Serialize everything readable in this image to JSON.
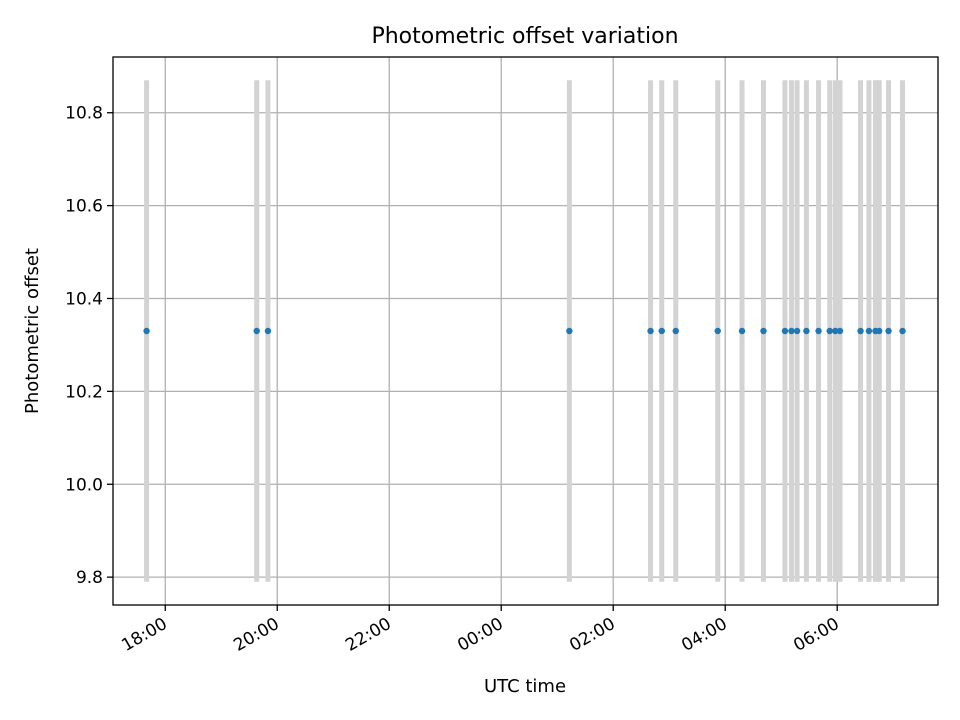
{
  "chart_data": {
    "type": "scatter",
    "title": "Photometric offset variation",
    "xlabel": "UTC time",
    "ylabel": "Photometric offset",
    "x_unit": "hours",
    "xlim": [
      "17:02",
      "07:46"
    ],
    "ylim": [
      9.74,
      10.92
    ],
    "x_ticks": [
      {
        "value": "17:58",
        "label": "18:00"
      },
      {
        "value": "19:58",
        "label": "20:00"
      },
      {
        "value": "21:58",
        "label": "22:00"
      },
      {
        "value": "23:58",
        "label": "00:00"
      },
      {
        "value": "01:58",
        "label": "02:00"
      },
      {
        "value": "03:58",
        "label": "04:00"
      },
      {
        "value": "05:58",
        "label": "06:00"
      }
    ],
    "y_ticks": [
      {
        "value": 9.8,
        "label": "9.8"
      },
      {
        "value": 10.0,
        "label": "10.0"
      },
      {
        "value": 10.2,
        "label": "10.2"
      },
      {
        "value": 10.4,
        "label": "10.4"
      },
      {
        "value": 10.6,
        "label": "10.6"
      },
      {
        "value": 10.8,
        "label": "10.8"
      }
    ],
    "grid": true,
    "error_bar_range": [
      9.79,
      10.87
    ],
    "points": [
      {
        "x": "17:38",
        "y": 10.33
      },
      {
        "x": "19:36",
        "y": 10.33
      },
      {
        "x": "19:48",
        "y": 10.33
      },
      {
        "x": "01:11",
        "y": 10.33
      },
      {
        "x": "02:38",
        "y": 10.33
      },
      {
        "x": "02:50",
        "y": 10.33
      },
      {
        "x": "03:05",
        "y": 10.33
      },
      {
        "x": "03:50",
        "y": 10.33
      },
      {
        "x": "04:16",
        "y": 10.33
      },
      {
        "x": "04:39",
        "y": 10.33
      },
      {
        "x": "05:02",
        "y": 10.33
      },
      {
        "x": "05:09",
        "y": 10.33
      },
      {
        "x": "05:15",
        "y": 10.33
      },
      {
        "x": "05:25",
        "y": 10.33
      },
      {
        "x": "05:38",
        "y": 10.33
      },
      {
        "x": "05:50",
        "y": 10.33
      },
      {
        "x": "05:56",
        "y": 10.33
      },
      {
        "x": "06:01",
        "y": 10.33
      },
      {
        "x": "06:23",
        "y": 10.33
      },
      {
        "x": "06:32",
        "y": 10.33
      },
      {
        "x": "06:39",
        "y": 10.33
      },
      {
        "x": "06:43",
        "y": 10.33
      },
      {
        "x": "06:53",
        "y": 10.33
      },
      {
        "x": "07:08",
        "y": 10.33
      }
    ],
    "colors": {
      "point": "#1f77b4",
      "error_bar": "#d3d3d3",
      "grid": "#b0b0b0",
      "axis": "#000000"
    }
  }
}
